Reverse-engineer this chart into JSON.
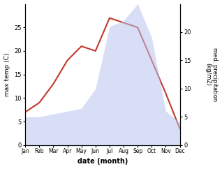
{
  "months": [
    "Jan",
    "Feb",
    "Mar",
    "Apr",
    "May",
    "Jun",
    "Jul",
    "Aug",
    "Sep",
    "Oct",
    "Nov",
    "Dec"
  ],
  "month_positions": [
    1,
    2,
    3,
    4,
    5,
    6,
    7,
    8,
    9,
    10,
    11,
    12
  ],
  "temperature": [
    7,
    9,
    13,
    18,
    21,
    20,
    27,
    26,
    25,
    18,
    11,
    3.5
  ],
  "precipitation": [
    5,
    5,
    5.5,
    6,
    6.5,
    10,
    21,
    22,
    25,
    19,
    6,
    4
  ],
  "temp_color": "#c0392b",
  "precip_fill_color": "#b8c4f0",
  "ylabel_left": "max temp (C)",
  "ylabel_right": "med. precipitation\n(kg/m2)",
  "xlabel": "date (month)",
  "ylim_left": [
    0,
    30
  ],
  "ylim_right": [
    0,
    25
  ],
  "yticks_left": [
    0,
    5,
    10,
    15,
    20,
    25
  ],
  "yticks_right": [
    0,
    5,
    10,
    15,
    20
  ],
  "background_color": "#ffffff"
}
